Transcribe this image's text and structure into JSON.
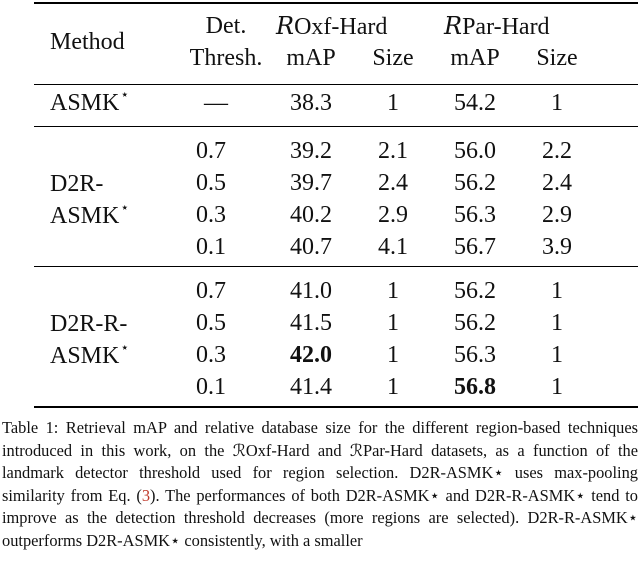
{
  "table": {
    "header": {
      "method": "Method",
      "det_line1": "Det.",
      "det_line2": "Thresh.",
      "group1_prefix": "R",
      "group1": "Oxf-Hard",
      "group2_prefix": "R",
      "group2": "Par-Hard",
      "map": "mAP",
      "size": "Size"
    },
    "star": "⋆",
    "sections": [
      {
        "method_lines": [
          "ASMK",
          ""
        ],
        "rows": [
          {
            "thresh": "—",
            "oxf_map": "38.3",
            "oxf_size": "1",
            "par_map": "54.2",
            "par_size": "1"
          }
        ]
      },
      {
        "method_lines": [
          "D2R-",
          "ASMK"
        ],
        "rows": [
          {
            "thresh": "0.7",
            "oxf_map": "39.2",
            "oxf_size": "2.1",
            "par_map": "56.0",
            "par_size": "2.2"
          },
          {
            "thresh": "0.5",
            "oxf_map": "39.7",
            "oxf_size": "2.4",
            "par_map": "56.2",
            "par_size": "2.4"
          },
          {
            "thresh": "0.3",
            "oxf_map": "40.2",
            "oxf_size": "2.9",
            "par_map": "56.3",
            "par_size": "2.9"
          },
          {
            "thresh": "0.1",
            "oxf_map": "40.7",
            "oxf_size": "4.1",
            "par_map": "56.7",
            "par_size": "3.9"
          }
        ]
      },
      {
        "method_lines": [
          "D2R-R-",
          "ASMK"
        ],
        "rows": [
          {
            "thresh": "0.7",
            "oxf_map": "41.0",
            "oxf_size": "1",
            "par_map": "56.2",
            "par_size": "1"
          },
          {
            "thresh": "0.5",
            "oxf_map": "41.5",
            "oxf_size": "1",
            "par_map": "56.2",
            "par_size": "1"
          },
          {
            "thresh": "0.3",
            "oxf_map": "42.0",
            "oxf_size": "1",
            "par_map": "56.3",
            "par_size": "1"
          },
          {
            "thresh": "0.1",
            "oxf_map": "41.4",
            "oxf_size": "1",
            "par_map": "56.8",
            "par_size": "1"
          }
        ]
      }
    ],
    "bold_values": [
      "42.0",
      "56.8"
    ]
  },
  "caption": {
    "label": "Table 1:",
    "text_before_ref": " Retrieval mAP and relative database size for the different region-based techniques introduced in this work, on the ℛOxf-Hard and ℛPar-Hard datasets, as a function of the landmark detector threshold used for region selection. D2R-ASMK⋆ uses max-pooling similarity from Eq. (",
    "ref": "3",
    "text_after_ref": "). The performances of both D2R-ASMK⋆ and D2R-R-ASMK⋆ tend to improve as the detection threshold decreases (more regions are selected). D2R-R-ASMK⋆ outperforms D2R-ASMK⋆ consistently, with a smaller"
  }
}
